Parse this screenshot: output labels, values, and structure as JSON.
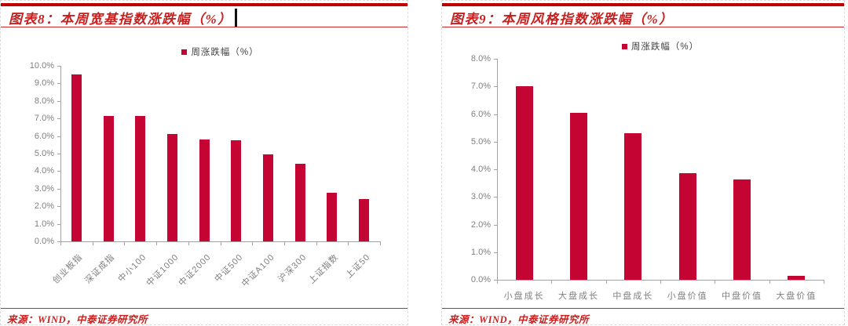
{
  "colors": {
    "bar_red": "#C40534",
    "title_red": "#C9201F",
    "rule_red": "#C00000",
    "thin_rule_red": "#CC2A2A",
    "axis_gray": "#A3A3A3",
    "tick_label_gray": "#7F7F7F",
    "legend_text_gray": "#3F3F3F"
  },
  "panels": [
    {
      "title": "图表8：本周宽基指数涨跌幅（%）",
      "source": "来源：WIND，中泰证券研究所"
    },
    {
      "title": "图表9：本周风格指数涨跌幅（%）",
      "source": "来源：WIND，中泰证券研究所"
    }
  ],
  "chart_data": [
    {
      "type": "bar",
      "title": "本周宽基指数涨跌幅（%）",
      "legend": [
        "周涨跌幅（%）"
      ],
      "legend_position": "top",
      "grid": false,
      "categories": [
        "创业板指",
        "深证成指",
        "中小100",
        "中证1000",
        "中证2000",
        "中证500",
        "中证A100",
        "沪深300",
        "上证指数",
        "上证50"
      ],
      "values": [
        9.5,
        7.15,
        7.15,
        6.1,
        5.8,
        5.75,
        4.95,
        4.4,
        2.75,
        2.4
      ],
      "ylim": [
        0,
        10
      ],
      "ytick_step": 1,
      "ytick_labels": [
        "0.0%",
        "1.0%",
        "2.0%",
        "3.0%",
        "4.0%",
        "5.0%",
        "6.0%",
        "7.0%",
        "8.0%",
        "9.0%",
        "10.0%"
      ],
      "xlabel_rotation": 45,
      "xlabel": "",
      "ylabel": ""
    },
    {
      "type": "bar",
      "title": "本周风格指数涨跌幅（%）",
      "legend": [
        "周涨跌幅（%）"
      ],
      "legend_position": "top",
      "grid": false,
      "categories": [
        "小盘成长",
        "大盘成长",
        "中盘成长",
        "小盘价值",
        "中盘价值",
        "大盘价值"
      ],
      "values": [
        7.0,
        6.05,
        5.3,
        3.87,
        3.62,
        0.15
      ],
      "ylim": [
        0,
        8
      ],
      "ytick_step": 1,
      "ytick_labels": [
        "0.0%",
        "1.0%",
        "2.0%",
        "3.0%",
        "4.0%",
        "5.0%",
        "6.0%",
        "7.0%",
        "8.0%"
      ],
      "xlabel_rotation": 0,
      "xlabel": "",
      "ylabel": ""
    }
  ]
}
